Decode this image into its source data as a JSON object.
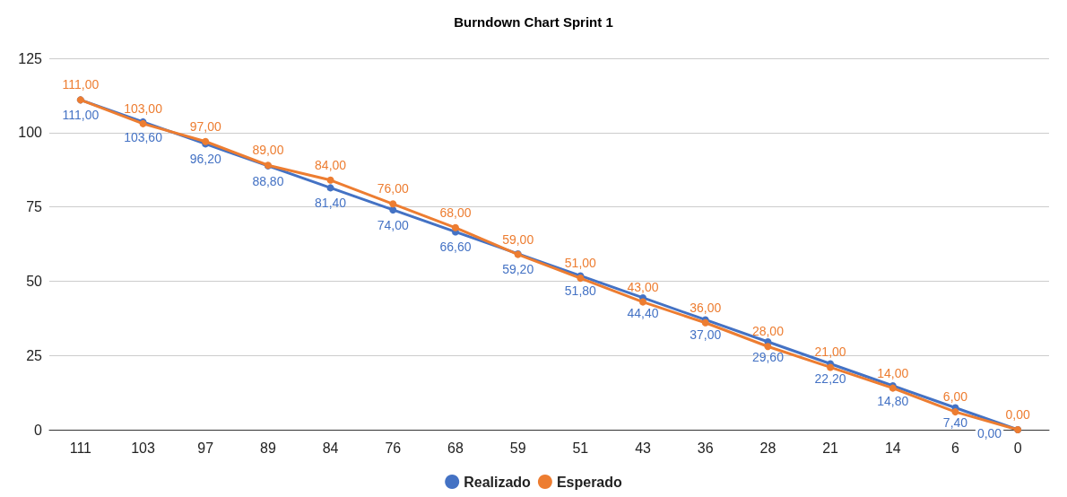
{
  "chart_data": {
    "type": "line",
    "title": "Burndown Chart Sprint 1",
    "categories": [
      "111",
      "103",
      "97",
      "89",
      "84",
      "76",
      "68",
      "59",
      "51",
      "43",
      "36",
      "28",
      "21",
      "14",
      "6",
      "0"
    ],
    "series": [
      {
        "name": "Realizado",
        "color": "#4472c4",
        "values": [
          111,
          103.6,
          96.2,
          88.8,
          81.4,
          74,
          66.6,
          59.2,
          51.8,
          44.4,
          37,
          29.6,
          22.2,
          14.8,
          7.4,
          0
        ],
        "value_labels": [
          "111,00",
          "103,60",
          "96,20",
          "88,80",
          "81,40",
          "74,00",
          "66,60",
          "59,20",
          "51,80",
          "44,40",
          "37,00",
          "29,60",
          "22,20",
          "14,80",
          "7,40",
          "0,00"
        ]
      },
      {
        "name": "Esperado",
        "color": "#ed7d31",
        "values": [
          111,
          103,
          97,
          89,
          84,
          76,
          68,
          59,
          51,
          43,
          36,
          28,
          21,
          14,
          6,
          0
        ],
        "value_labels": [
          "111,00",
          "103,00",
          "97,00",
          "89,00",
          "84,00",
          "76,00",
          "68,00",
          "59,00",
          "51,00",
          "43,00",
          "36,00",
          "28,00",
          "21,00",
          "14,00",
          "6,00",
          "0,00"
        ]
      }
    ],
    "ylim": [
      0,
      125
    ],
    "yticks": [
      0,
      25,
      50,
      75,
      100,
      125
    ],
    "grid": "y",
    "legend": "bottom",
    "marker": "circle",
    "line_style": "solid"
  }
}
